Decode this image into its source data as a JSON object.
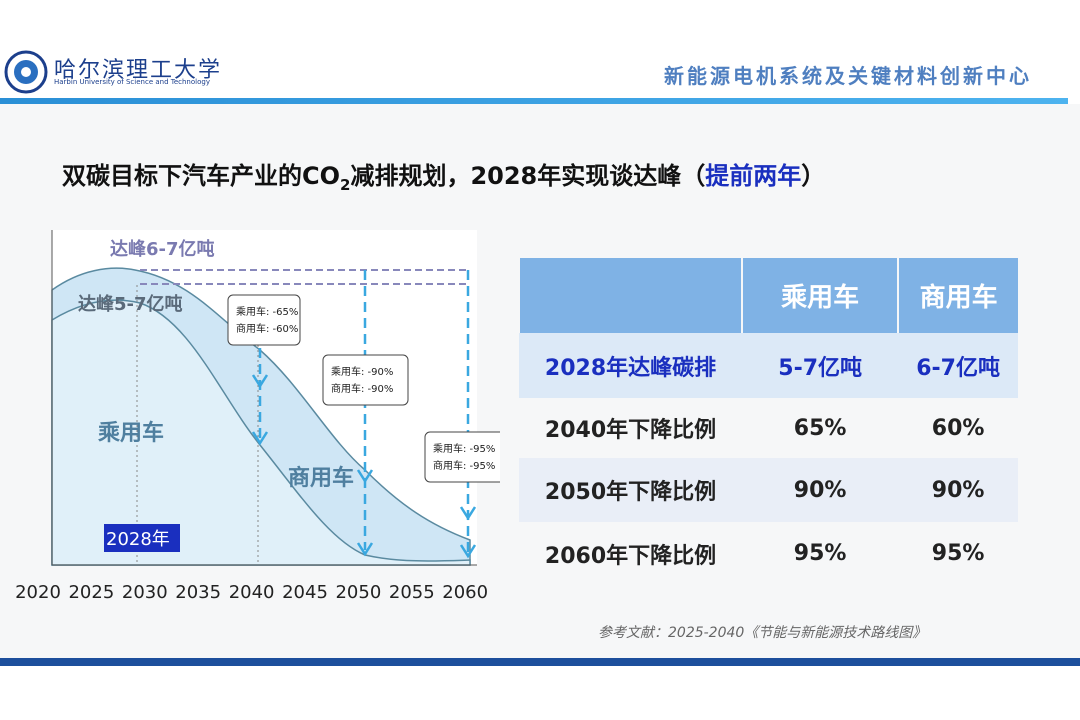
{
  "header": {
    "logo_text": "哈尔滨理工大学",
    "logo_subtext": "Harbin University of Science and Technology",
    "center_name": "新能源电机系统及关键材料创新中心"
  },
  "title": {
    "before": "双碳目标下汽车产业的CO",
    "subscript": "2",
    "middle": "减排规划，2028年实现谈达峰（",
    "highlight": "提前两年",
    "after": "）"
  },
  "figure": {
    "peak_total": "达峰6-7亿吨",
    "peak_passenger": "达峰5-7亿吨",
    "passenger_area": "乘用车",
    "commercial_area": "商用车",
    "marker": "2028年",
    "x_labels": [
      "2020",
      "2025",
      "2030",
      "2035",
      "2040",
      "2045",
      "2050",
      "2055",
      "2060"
    ],
    "callouts": [
      [
        "乘用车: -65%",
        "商用车: -60%"
      ],
      [
        "乘用车: -90%",
        "商用车: -90%"
      ],
      [
        "乘用车: -95%",
        "商用车: -95%"
      ]
    ]
  },
  "table": {
    "header": [
      "乘用车",
      "商用车"
    ],
    "rows": [
      [
        "2028年达峰碳排",
        "5-7亿吨",
        "6-7亿吨"
      ],
      [
        "2040年下降比例",
        "65%",
        "60%"
      ],
      [
        "2050年下降比例",
        "90%",
        "90%"
      ],
      [
        "2060年下降比例",
        "95%",
        "95%"
      ]
    ]
  },
  "reference": "参考文献：2025-2040《节能与新能源技术路线图》"
}
